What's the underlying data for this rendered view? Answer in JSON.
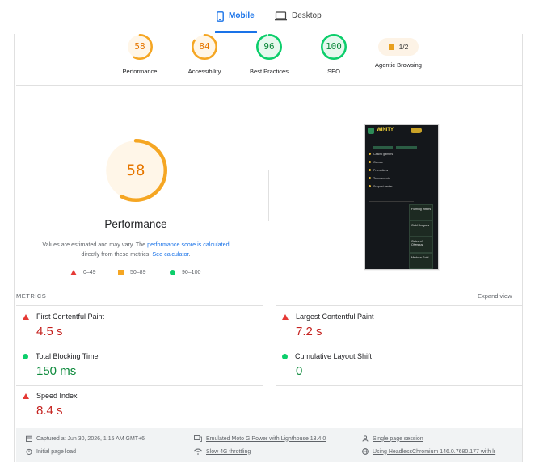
{
  "tabs": [
    {
      "label": "Mobile",
      "active": true
    },
    {
      "label": "Desktop",
      "active": false
    }
  ],
  "scores": [
    {
      "name": "Performance",
      "value": "58",
      "color": "#e67700",
      "ring": "#f5a623",
      "bg": "#fff6e8",
      "fraction": 0.58
    },
    {
      "name": "Accessibility",
      "value": "84",
      "color": "#e67700",
      "ring": "#f5a623",
      "bg": "#fff6e8",
      "fraction": 0.84
    },
    {
      "name": "Best Practices",
      "value": "96",
      "color": "#0d8a3c",
      "ring": "#0cce6b",
      "bg": "#e6f8ee",
      "fraction": 0.96
    },
    {
      "name": "SEO",
      "value": "100",
      "color": "#0d8a3c",
      "ring": "#0cce6b",
      "bg": "#e6f8ee",
      "fraction": 1.0
    }
  ],
  "agentic": {
    "name": "Agentic Browsing",
    "badge": "1/2",
    "color": "#e8a01f"
  },
  "main_gauge": {
    "value": "58",
    "fraction": 0.58,
    "title": "Performance"
  },
  "note": {
    "text1": "Values are estimated and may vary. The ",
    "link1": "performance score is calculated",
    "text2": "directly from these metrics. ",
    "link2": "See calculator",
    "text3": "."
  },
  "legend": [
    {
      "shape": "triangle",
      "range": "0–49"
    },
    {
      "shape": "square",
      "range": "50–89"
    },
    {
      "shape": "circle",
      "range": "90–100"
    }
  ],
  "thumbnail": {
    "brand": "WINITY",
    "menu": [
      "Casino gamers",
      "Games",
      "Promotions",
      "Tournaments",
      "Support center"
    ],
    "cards": [
      "Flaming Hitters",
      "Gold Dragons",
      "Gates of Olympus",
      "Medusa Gold"
    ]
  },
  "metrics_header": {
    "title": "METRICS",
    "expand": "Expand view"
  },
  "metrics": [
    {
      "name": "First Contentful Paint",
      "value": "4.5 s",
      "status": "bad"
    },
    {
      "name": "Largest Contentful Paint",
      "value": "7.2 s",
      "status": "bad"
    },
    {
      "name": "Total Blocking Time",
      "value": "150 ms",
      "status": "good"
    },
    {
      "name": "Cumulative Layout Shift",
      "value": "0",
      "status": "good"
    },
    {
      "name": "Speed Index",
      "value": "8.4 s",
      "status": "bad"
    }
  ],
  "footer": {
    "captured": "Captured at Jun 30, 2026, 1:15 AM GMT+6",
    "device": "Emulated Moto G Power with Lighthouse 13.4.0",
    "session": "Single page session",
    "load": "Initial page load",
    "throttling": "Slow 4G throttling",
    "browser": "Using HeadlessChromium 146.0.7680.177 with lr"
  }
}
